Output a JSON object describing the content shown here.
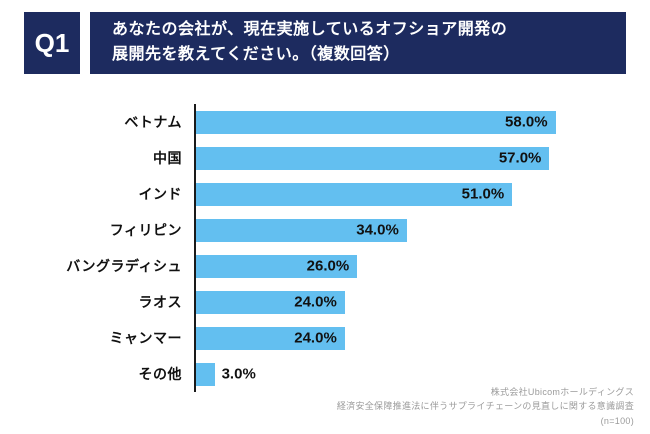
{
  "header": {
    "q_label": "Q1",
    "title_line1": "あなたの会社が、現在実施しているオフショア開発の",
    "title_line2": "展開先を教えてください。（複数回答）"
  },
  "chart_data": {
    "type": "bar",
    "orientation": "horizontal",
    "title": "あなたの会社が、現在実施しているオフショア開発の展開先を教えてください。（複数回答）",
    "categories": [
      "ベトナム",
      "中国",
      "インド",
      "フィリピン",
      "バングラディシュ",
      "ラオス",
      "ミャンマー",
      "その他"
    ],
    "values": [
      58.0,
      57.0,
      51.0,
      34.0,
      26.0,
      24.0,
      24.0,
      3.0
    ],
    "value_labels": [
      "58.0%",
      "57.0%",
      "51.0%",
      "34.0%",
      "26.0%",
      "24.0%",
      "24.0%",
      "3.0%"
    ],
    "xlabel": "",
    "ylabel": "",
    "xlim": [
      0,
      60
    ],
    "grid": false,
    "legend": false,
    "bar_color": "#63bff0"
  },
  "footer": {
    "line1": "株式会社Ubicomホールディングス",
    "line2": "経済安全保障推進法に伴うサプライチェーンの見直しに関する意識調査",
    "line3": "(n=100)"
  },
  "colors": {
    "header_bg": "#1d2b5f",
    "bar": "#63bff0",
    "axis": "#1a1a1a",
    "value_text": "#111111",
    "source_text": "#9b9b9b"
  }
}
